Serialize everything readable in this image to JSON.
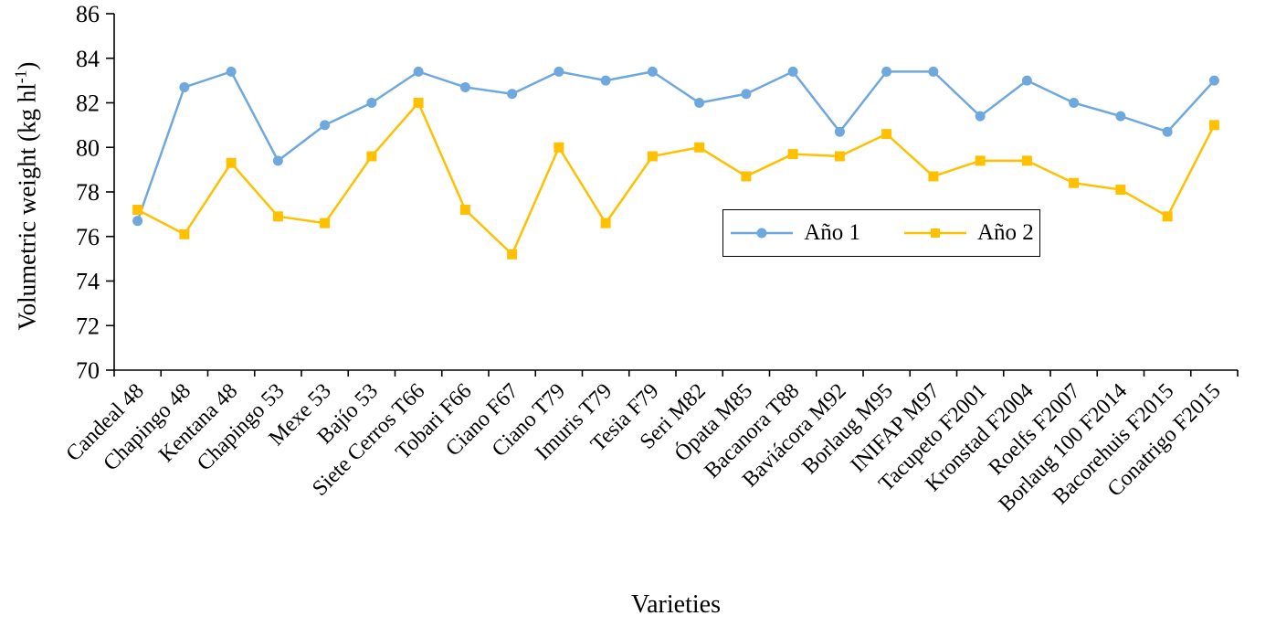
{
  "chart_data": {
    "type": "line",
    "title": "",
    "xlabel": "Varieties",
    "ylabel": "Volumetric weight (kg hl⁻¹)",
    "ylabel_parts": {
      "pre": "Volumetric weight (kg hl",
      "sup": "-1",
      "post": ")"
    },
    "ylim": [
      70,
      86
    ],
    "yticks": [
      70,
      72,
      74,
      76,
      78,
      80,
      82,
      84,
      86
    ],
    "grid": false,
    "legend_position": "inside-center-right",
    "background": "#FFFFFF",
    "axis_color": "#000000",
    "text_color": "#000000",
    "categories": [
      "Candeal 48",
      "Chapingo 48",
      "Kentana 48",
      "Chapingo 53",
      "Mexe 53",
      "Bajío 53",
      "Siete Cerros T66",
      "Tobari F66",
      "Ciano F67",
      "Ciano T79",
      "Imuris T79",
      "Tesia F79",
      "Seri M82",
      "Ópata M85",
      "Bacanora T88",
      "Baviácora M92",
      "Borlaug M95",
      "INIFAP M97",
      "Tacupeto F2001",
      "Kronstad F2004",
      "Roelfs F2007",
      "Borlaug 100 F2014",
      "Bacorehuis F2015",
      "Conatrigo F2015"
    ],
    "series": [
      {
        "name": "Año 1",
        "marker": "circle",
        "color": "#6FA8DC",
        "values": [
          76.7,
          82.7,
          83.4,
          79.4,
          81.0,
          82.0,
          83.4,
          82.7,
          82.4,
          83.4,
          83.0,
          83.4,
          82.0,
          82.4,
          83.4,
          80.7,
          83.4,
          83.4,
          81.4,
          83.0,
          82.0,
          81.4,
          80.7,
          83.0
        ]
      },
      {
        "name": "Año 2",
        "marker": "square",
        "color": "#FFC000",
        "values": [
          77.2,
          76.1,
          79.3,
          76.9,
          76.6,
          79.6,
          82.0,
          77.2,
          75.2,
          80.0,
          76.6,
          79.6,
          80.0,
          78.7,
          79.7,
          79.6,
          80.6,
          78.7,
          79.4,
          79.4,
          78.4,
          78.1,
          76.9,
          81.0
        ]
      }
    ]
  }
}
